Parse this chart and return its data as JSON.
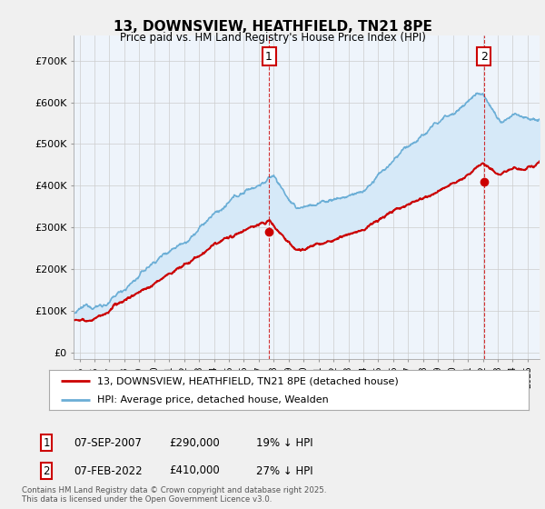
{
  "title": "13, DOWNSVIEW, HEATHFIELD, TN21 8PE",
  "subtitle": "Price paid vs. HM Land Registry's House Price Index (HPI)",
  "yticks": [
    0,
    100000,
    200000,
    300000,
    400000,
    500000,
    600000,
    700000
  ],
  "ytick_labels": [
    "£0",
    "£100K",
    "£200K",
    "£300K",
    "£400K",
    "£500K",
    "£600K",
    "£700K"
  ],
  "ylim": [
    -15000,
    760000
  ],
  "xlim_start": 1994.6,
  "xlim_end": 2025.8,
  "hpi_color": "#6baed6",
  "hpi_fill_color": "#d6e9f8",
  "price_color": "#cc0000",
  "marker1_date": 2007.68,
  "marker1_price": 290000,
  "marker1_label": "1",
  "marker2_date": 2022.08,
  "marker2_price": 410000,
  "marker2_label": "2",
  "legend_line1": "13, DOWNSVIEW, HEATHFIELD, TN21 8PE (detached house)",
  "legend_line2": "HPI: Average price, detached house, Wealden",
  "footnote": "Contains HM Land Registry data © Crown copyright and database right 2025.\nThis data is licensed under the Open Government Licence v3.0.",
  "table": [
    {
      "num": "1",
      "date": "07-SEP-2007",
      "price": "£290,000",
      "hpi": "19% ↓ HPI"
    },
    {
      "num": "2",
      "date": "07-FEB-2022",
      "price": "£410,000",
      "hpi": "27% ↓ HPI"
    }
  ],
  "background_color": "#f0f0f0",
  "plot_bg_color": "#eef4fb",
  "grid_color": "#cccccc"
}
